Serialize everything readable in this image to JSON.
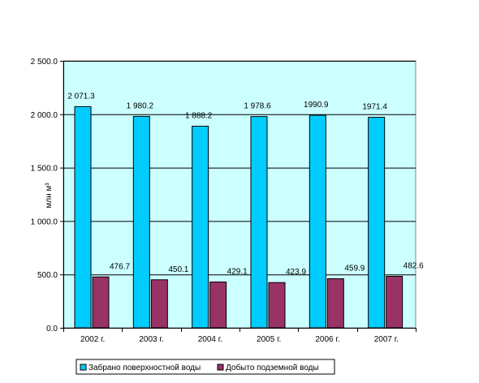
{
  "chart_data": {
    "type": "bar",
    "categories": [
      "2002 г.",
      "2003 г.",
      "2004 г.",
      "2005 г.",
      "2006 г.",
      "2007 г."
    ],
    "series": [
      {
        "name": "Забрано поверхностной воды",
        "values": [
          2071.3,
          1980.2,
          1888.2,
          1978.6,
          1990.9,
          1971.4
        ],
        "labels": [
          "2 071.3",
          "1 980.2",
          "1 888.2",
          "1 978.6",
          "1990.9",
          "1971.4"
        ],
        "color": "#00ccff"
      },
      {
        "name": "Добыто подземной воды",
        "values": [
          476.7,
          450.1,
          429.1,
          423.9,
          459.9,
          482.6
        ],
        "labels": [
          "476.7",
          "450.1",
          "429.1",
          "423.9",
          "459.9",
          "482.6"
        ],
        "color": "#993366"
      }
    ],
    "ylabel": "млн м³",
    "ylim": [
      0,
      2500
    ],
    "yticks": [
      0,
      500,
      1000,
      1500,
      2000,
      2500
    ],
    "ytick_labels": [
      "0.0",
      "500.0",
      "1 000.0",
      "1 500.0",
      "2 000.0",
      "2 500.0"
    ],
    "plot_background": "#ccffff",
    "grid": true,
    "legend_position": "bottom"
  }
}
